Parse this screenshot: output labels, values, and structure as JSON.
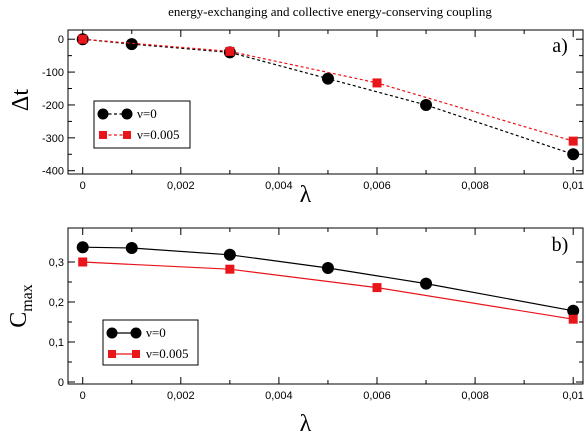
{
  "figure_title": "energy-exchanging and collective energy-conserving coupling",
  "colors": {
    "black": "#000000",
    "red": "#e8151b"
  },
  "chart_data": [
    {
      "type": "line",
      "panel_label": "a)",
      "xlabel": "λ",
      "ylabel": "Δt",
      "xlim": [
        -0.0003,
        0.0102
      ],
      "ylim": [
        -410,
        28
      ],
      "xticks": [
        0,
        0.002,
        0.004,
        0.006,
        0.008,
        0.01
      ],
      "xtick_labels": [
        "0",
        "0,002",
        "0,004",
        "0,006",
        "0,008",
        "0,01"
      ],
      "yticks": [
        0,
        -100,
        -200,
        -300,
        -400
      ],
      "ytick_labels": [
        "0",
        "-100",
        "-200",
        "-300",
        "-400"
      ],
      "grid": false,
      "legend_position": "lower-left",
      "series": [
        {
          "name": "ν=0",
          "color": "#000000",
          "marker": "circle",
          "line": "dashed",
          "x": [
            0,
            0.001,
            0.003,
            0.005,
            0.007,
            0.01
          ],
          "y": [
            0,
            -15,
            -40,
            -120,
            -200,
            -350
          ]
        },
        {
          "name": "ν=0.005",
          "color": "#e8151b",
          "marker": "square",
          "line": "dashed",
          "x": [
            0,
            0.003,
            0.006,
            0.01
          ],
          "y": [
            0,
            -37,
            -133,
            -310
          ]
        }
      ]
    },
    {
      "type": "line",
      "panel_label": "b)",
      "xlabel": "λ",
      "ylabel": "C",
      "ylabel_sub": "max",
      "xlim": [
        -0.0003,
        0.0102
      ],
      "ylim": [
        -0.005,
        0.385
      ],
      "xticks": [
        0,
        0.002,
        0.004,
        0.006,
        0.008,
        0.01
      ],
      "xtick_labels": [
        "0",
        "0,002",
        "0,004",
        "0,006",
        "0,008",
        "0,01"
      ],
      "yticks": [
        0,
        0.1,
        0.2,
        0.3
      ],
      "ytick_labels": [
        "0",
        "0,1",
        "0,2",
        "0,3"
      ],
      "grid": false,
      "legend_position": "lower-left",
      "series": [
        {
          "name": "ν=0",
          "color": "#000000",
          "marker": "circle",
          "line": "solid",
          "x": [
            0,
            0.001,
            0.003,
            0.005,
            0.007,
            0.01
          ],
          "y": [
            0.337,
            0.335,
            0.318,
            0.285,
            0.246,
            0.178
          ]
        },
        {
          "name": "ν=0.005",
          "color": "#e8151b",
          "marker": "square",
          "line": "solid",
          "x": [
            0,
            0.003,
            0.006,
            0.01
          ],
          "y": [
            0.3,
            0.282,
            0.236,
            0.157
          ]
        }
      ]
    }
  ]
}
